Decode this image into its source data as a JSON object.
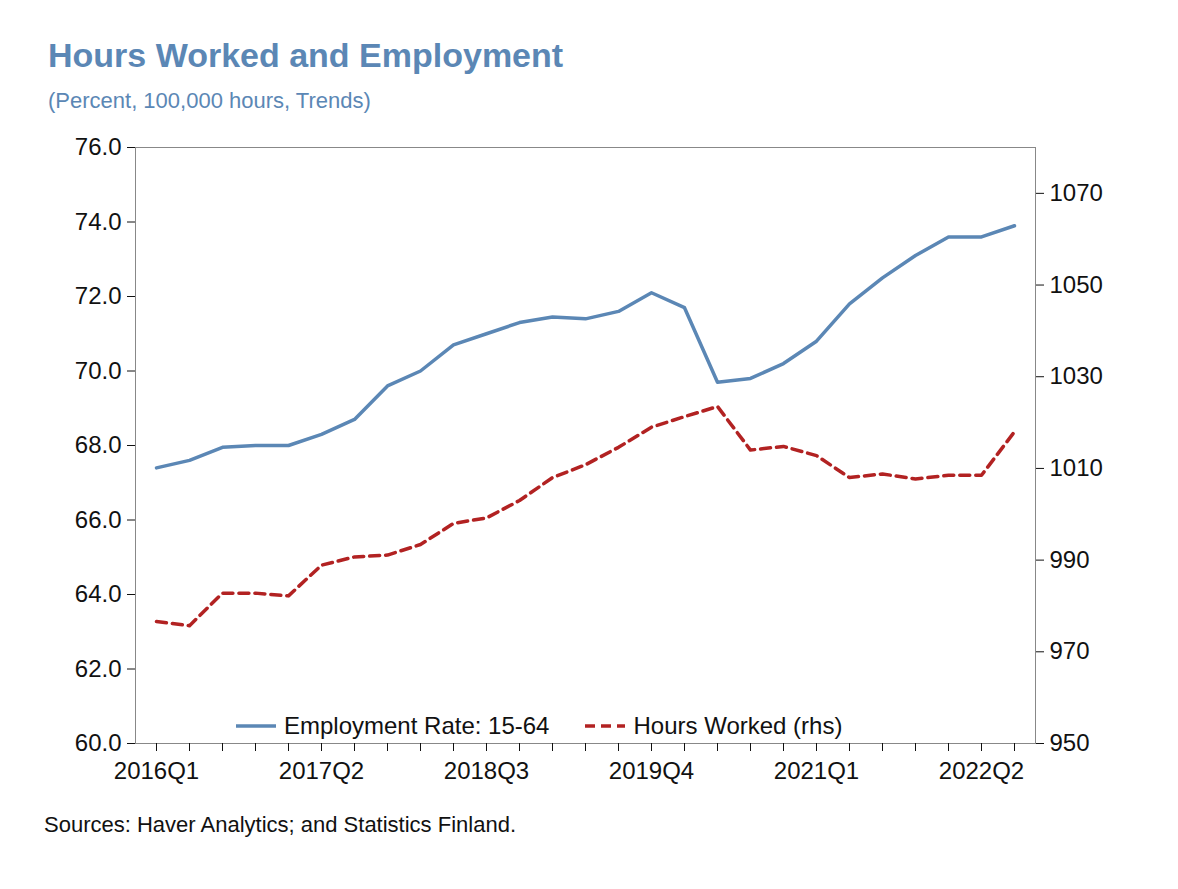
{
  "chart_data": {
    "type": "line",
    "title": "Hours Worked and Employment",
    "subtitle": "(Percent, 100,000 hours, Trends)",
    "caption": "Sources: Haver Analytics; and Statistics Finland.",
    "categories": [
      "2016Q1",
      null,
      null,
      null,
      null,
      "2017Q2",
      null,
      null,
      null,
      null,
      "2018Q3",
      null,
      null,
      null,
      null,
      "2019Q4",
      null,
      null,
      null,
      null,
      "2021Q1",
      null,
      null,
      null,
      null,
      "2022Q2",
      null
    ],
    "series": [
      {
        "name": "Employment Rate: 15-64",
        "color": "#5b87b5",
        "line_style": "solid",
        "axis": "y",
        "values": [
          67.4,
          67.6,
          67.95,
          68.0,
          68.0,
          68.3,
          68.7,
          69.6,
          70.0,
          70.7,
          71.0,
          71.3,
          71.45,
          71.4,
          71.6,
          72.1,
          71.7,
          69.7,
          69.8,
          70.2,
          70.8,
          71.8,
          72.5,
          73.1,
          73.6,
          73.6,
          73.9
        ]
      },
      {
        "name": "Hours Worked (rhs)",
        "color": "#b22222",
        "line_style": "dashed",
        "axis": "y2",
        "values": [
          976.6,
          975.7,
          982.8,
          982.8,
          982.2,
          988.9,
          990.7,
          991.1,
          993.4,
          998.0,
          999.2,
          1003.0,
          1008.0,
          1010.8,
          1014.6,
          1019.0,
          1021.3,
          1023.5,
          1014.0,
          1014.8,
          1012.8,
          1008.0,
          1008.8,
          1007.7,
          1008.5,
          1008.5,
          1018.0
        ]
      }
    ],
    "ylim": [
      60,
      76
    ],
    "yticks": [
      {
        "value": 60,
        "label": "60.0"
      },
      {
        "value": 62,
        "label": "62.0"
      },
      {
        "value": 64,
        "label": "64.0"
      },
      {
        "value": 66,
        "label": "66.0"
      },
      {
        "value": 68,
        "label": "68.0"
      },
      {
        "value": 70,
        "label": "70.0"
      },
      {
        "value": 72,
        "label": "72.0"
      },
      {
        "value": 74,
        "label": "74.0"
      },
      {
        "value": 76,
        "label": "76.0"
      }
    ],
    "y2lim": [
      950,
      1080
    ],
    "y2ticks": [
      950,
      970,
      990,
      1010,
      1030,
      1050,
      1070
    ],
    "grid": false,
    "legend": "bottom"
  }
}
